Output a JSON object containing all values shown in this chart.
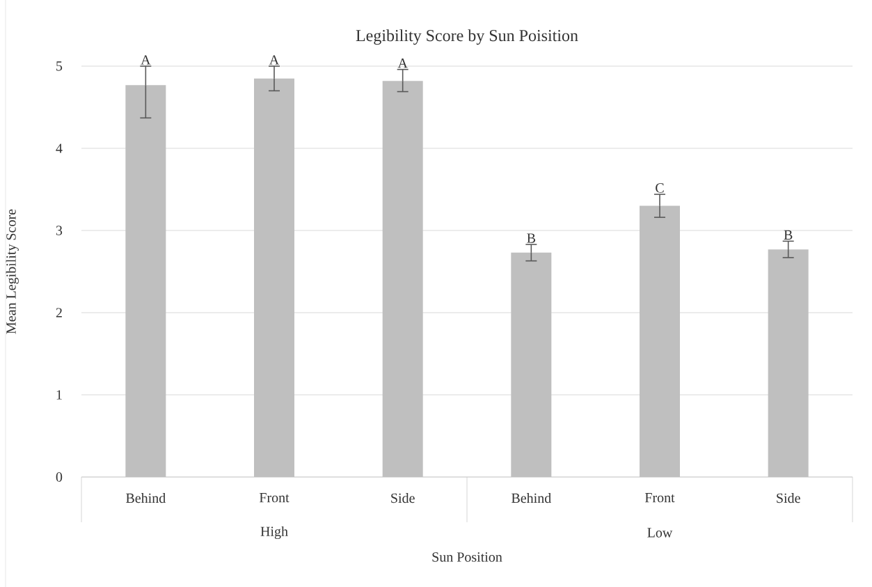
{
  "chart_data": {
    "type": "bar",
    "title": "Legibility Score by Sun Poisition",
    "xlabel": "Sun Position",
    "ylabel": "Mean Legibility Score",
    "categories": [
      "Behind",
      "Front",
      "Side",
      "Behind",
      "Front",
      "Side"
    ],
    "values": [
      4.77,
      4.85,
      4.82,
      2.73,
      3.3,
      2.77
    ],
    "errors": [
      [
        4.37,
        5.0
      ],
      [
        4.7,
        5.0
      ],
      [
        4.69,
        4.96
      ],
      [
        2.63,
        2.83
      ],
      [
        3.16,
        3.44
      ],
      [
        2.67,
        2.87
      ]
    ],
    "color": "#bfbfbf",
    "annotations": [
      "A",
      "A",
      "A",
      "B",
      "C",
      "B",
      "High",
      "Low"
    ],
    "ylim": [
      0,
      5
    ],
    "yticks": [
      0,
      1,
      2,
      3,
      4,
      5
    ],
    "grid": "y"
  }
}
